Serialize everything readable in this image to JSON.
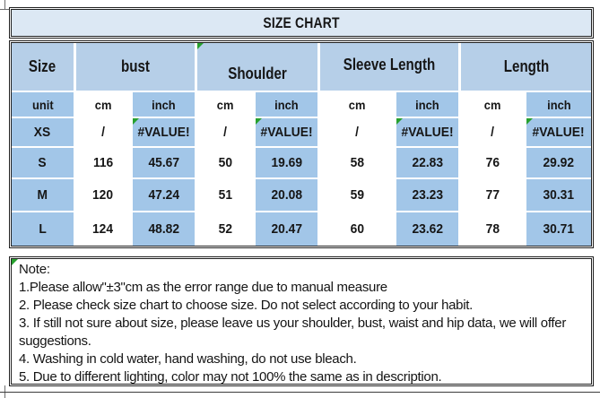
{
  "title": "SIZE CHART",
  "table": {
    "columns": [
      {
        "label": "Size",
        "span": 1,
        "flag": false
      },
      {
        "label": "bust",
        "span": 2,
        "flag": false
      },
      {
        "label": "Shoulder",
        "span": 2,
        "flag": true
      },
      {
        "label": "Sleeve Length",
        "span": 2,
        "flag": false
      },
      {
        "label": "Length",
        "span": 2,
        "flag": false
      }
    ],
    "unit_row": [
      "unit",
      "cm",
      "inch",
      "cm",
      "inch",
      "cm",
      "inch",
      "cm",
      "inch"
    ],
    "rows": [
      {
        "size": "XS",
        "values": [
          "/",
          "#VALUE!",
          "/",
          "#VALUE!",
          "/",
          "#VALUE!",
          "/",
          "#VALUE!"
        ]
      },
      {
        "size": "S",
        "values": [
          "116",
          "45.67",
          "50",
          "19.69",
          "58",
          "22.83",
          "76",
          "29.92"
        ]
      },
      {
        "size": "M",
        "values": [
          "120",
          "47.24",
          "51",
          "20.08",
          "59",
          "23.23",
          "77",
          "30.31"
        ]
      },
      {
        "size": "L",
        "values": [
          "124",
          "48.82",
          "52",
          "20.47",
          "60",
          "23.62",
          "78",
          "30.71"
        ]
      }
    ],
    "error_value": "#VALUE!"
  },
  "notes": {
    "heading": "Note:",
    "items": [
      "1.Please allow\"±3\"cm as the error range due to manual measure",
      "2. Please check size chart to choose size. Do not select according to your habit.",
      "3. If still not sure about size, please leave us your shoulder, bust, waist and hip data, we will offer suggestions.",
      "4. Washing in cold water, hand washing, do not use bleach.",
      "5. Due to different lighting, color may not 100% the same as in description."
    ]
  },
  "colors": {
    "title_band": "#dce8f4",
    "header_fill": "#b6cfe8",
    "cell_fill_blue": "#a2c6e8",
    "cell_fill_white": "#ffffff",
    "border_dark": "#1f1f1f",
    "error_flag_green": "#27a02e",
    "text": "#161616"
  }
}
